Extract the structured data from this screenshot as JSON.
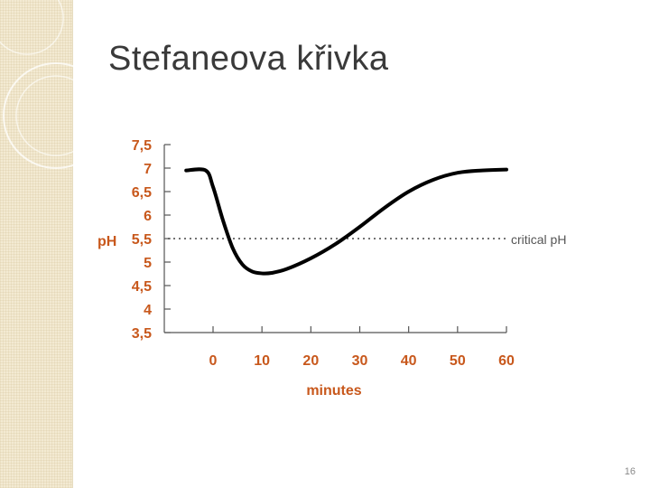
{
  "slide": {
    "title": "Stefaneova křivka",
    "page_number": "16"
  },
  "colors": {
    "tick_label": "#c8581c",
    "curve": "#000000",
    "axis": "#555555",
    "strip": "#f3ead2"
  },
  "chart_data": {
    "type": "line",
    "xlabel": "minutes",
    "ylabel": "pH",
    "xlim": [
      -10,
      60
    ],
    "ylim": [
      3.5,
      7.5
    ],
    "x_ticks": [
      "0",
      "10",
      "20",
      "30",
      "40",
      "50",
      "60"
    ],
    "y_ticks": [
      "7,5",
      "7",
      "6,5",
      "6",
      "5,5",
      "5",
      "4,5",
      "4",
      "3,5"
    ],
    "grid": false,
    "series": [
      {
        "x": [
          -5.5,
          -1.5,
          0,
          2,
          4,
          6,
          8,
          10,
          12,
          15,
          20,
          25,
          30,
          35,
          40,
          45,
          50,
          55,
          60
        ],
        "y": [
          6.95,
          6.95,
          6.6,
          5.9,
          5.3,
          4.95,
          4.8,
          4.76,
          4.77,
          4.85,
          5.08,
          5.38,
          5.75,
          6.15,
          6.5,
          6.75,
          6.9,
          6.95,
          6.97
        ]
      }
    ],
    "reference_lines": [
      {
        "y": 5.5,
        "label": "critical pH",
        "style": "dotted"
      }
    ]
  }
}
